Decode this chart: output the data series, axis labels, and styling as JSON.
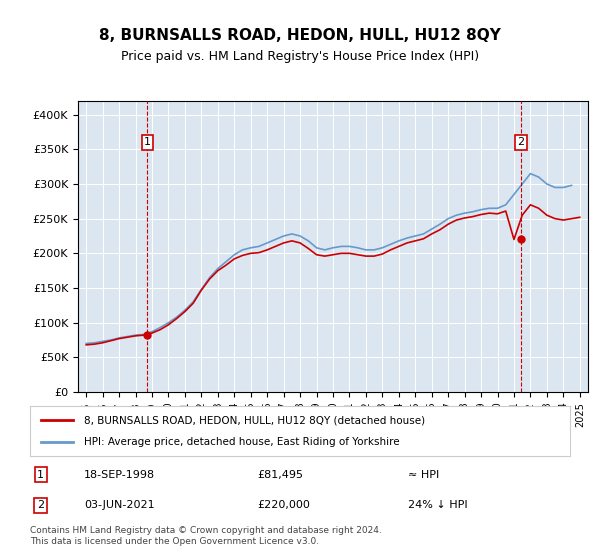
{
  "title": "8, BURNSALLS ROAD, HEDON, HULL, HU12 8QY",
  "subtitle": "Price paid vs. HM Land Registry's House Price Index (HPI)",
  "legend_line1": "8, BURNSALLS ROAD, HEDON, HULL, HU12 8QY (detached house)",
  "legend_line2": "HPI: Average price, detached house, East Riding of Yorkshire",
  "annotation1_label": "1",
  "annotation1_date": "18-SEP-1998",
  "annotation1_price": "£81,495",
  "annotation1_hpi": "≈ HPI",
  "annotation2_label": "2",
  "annotation2_date": "03-JUN-2021",
  "annotation2_price": "£220,000",
  "annotation2_hpi": "24% ↓ HPI",
  "footer": "Contains HM Land Registry data © Crown copyright and database right 2024.\nThis data is licensed under the Open Government Licence v3.0.",
  "hpi_color": "#6699cc",
  "price_color": "#cc0000",
  "bg_color": "#dce6f1",
  "plot_bg": "#dce6f1",
  "annotation_box_color": "#cc0000",
  "ylim": [
    0,
    420000
  ],
  "yticks": [
    0,
    50000,
    100000,
    150000,
    200000,
    250000,
    300000,
    350000,
    400000
  ],
  "ytick_labels": [
    "£0",
    "£50K",
    "£100K",
    "£150K",
    "£200K",
    "£250K",
    "£300K",
    "£350K",
    "£400K"
  ]
}
